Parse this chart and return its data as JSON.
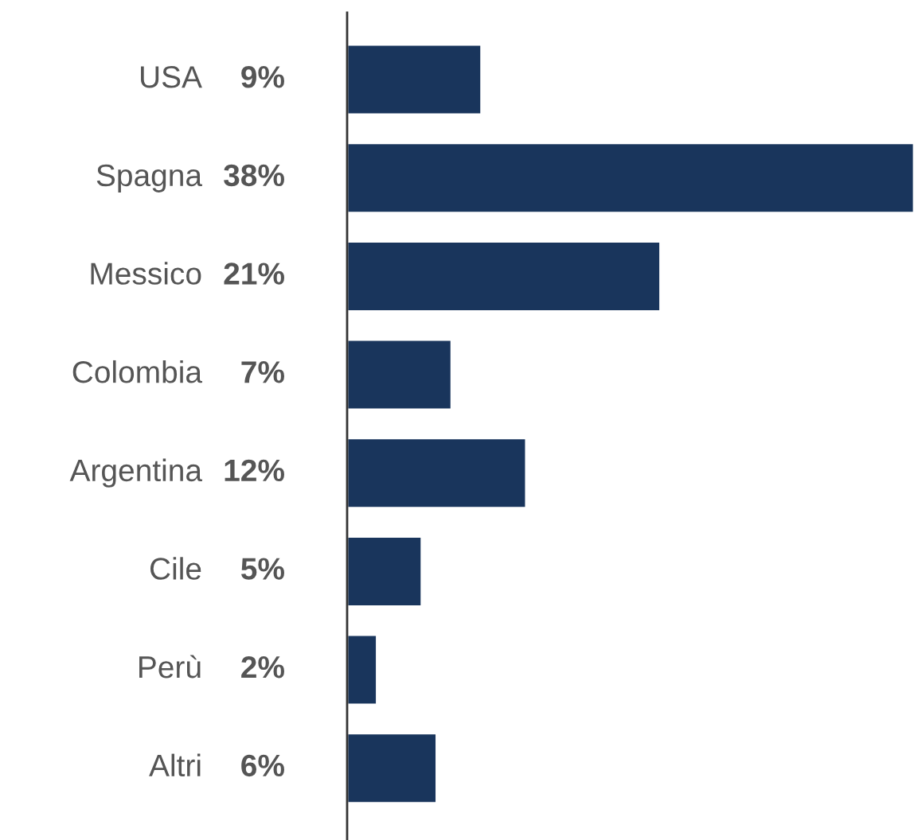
{
  "chart_data": {
    "type": "bar",
    "orientation": "horizontal",
    "categories": [
      "USA",
      "Spagna",
      "Messico",
      "Colombia",
      "Argentina",
      "Cile",
      "Perù",
      "Altri"
    ],
    "values": [
      9,
      38,
      21,
      7,
      12,
      5,
      2,
      6
    ],
    "value_labels": [
      "9%",
      "38%",
      "21%",
      "7%",
      "12%",
      "5%",
      "2%",
      "6%"
    ],
    "color": "#19355c"
  }
}
